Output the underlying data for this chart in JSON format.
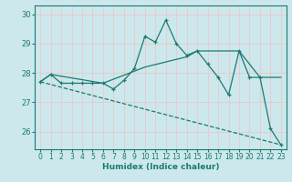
{
  "xlabel": "Humidex (Indice chaleur)",
  "bg_color": "#cce8ec",
  "grid_color": "#b8d8dc",
  "line_color": "#1a7a72",
  "xlim": [
    -0.5,
    23.5
  ],
  "ylim": [
    25.4,
    30.3
  ],
  "yticks": [
    26,
    27,
    28,
    29,
    30
  ],
  "xticks": [
    0,
    1,
    2,
    3,
    4,
    5,
    6,
    7,
    8,
    9,
    10,
    11,
    12,
    13,
    14,
    15,
    16,
    17,
    18,
    19,
    20,
    21,
    22,
    23
  ],
  "line_jagged": {
    "x": [
      0,
      1,
      2,
      3,
      4,
      5,
      6,
      7,
      8,
      9,
      10,
      11,
      12,
      13,
      14,
      15,
      16,
      17,
      18,
      19,
      20,
      21,
      22,
      23
    ],
    "y": [
      27.7,
      27.95,
      27.65,
      27.65,
      27.65,
      27.65,
      27.65,
      27.45,
      27.75,
      28.15,
      29.25,
      29.05,
      29.8,
      29.0,
      28.6,
      28.75,
      28.3,
      27.85,
      27.25,
      28.75,
      27.85,
      27.85,
      26.1,
      25.55
    ]
  },
  "line_trend": {
    "x": [
      0,
      1,
      6,
      10,
      14,
      15,
      19,
      21,
      23
    ],
    "y": [
      27.7,
      27.95,
      27.65,
      28.2,
      28.55,
      28.75,
      28.75,
      27.85,
      27.85
    ]
  },
  "line_diagonal": {
    "x": [
      0,
      23
    ],
    "y": [
      27.7,
      25.55
    ]
  }
}
